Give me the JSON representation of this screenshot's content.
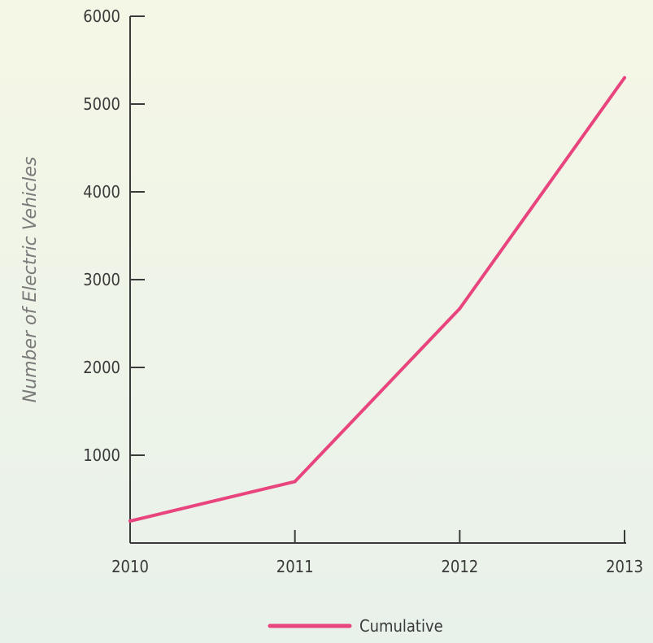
{
  "chart_data": {
    "type": "line",
    "title": "",
    "xlabel": "",
    "ylabel": "Number of Electric Vehicles",
    "x": [
      "2010",
      "2011",
      "2012",
      "2013"
    ],
    "series": [
      {
        "name": "Cumulative",
        "values": [
          250,
          700,
          2670,
          5300
        ],
        "color": "#e8457f"
      }
    ],
    "yticks": [
      1000,
      2000,
      3000,
      4000,
      5000,
      6000
    ],
    "ylim": [
      0,
      6000
    ],
    "grid": false,
    "legend": "bottom-center"
  }
}
